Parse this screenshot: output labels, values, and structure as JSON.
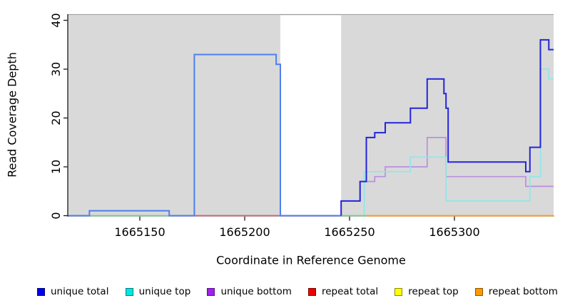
{
  "chart_data": {
    "type": "line",
    "step": true,
    "title": "",
    "xlabel": "Coordinate in Reference Genome",
    "ylabel": "Read Coverage Depth",
    "xlim": [
      1665115.6,
      1665347.3
    ],
    "ylim": [
      0,
      41
    ],
    "x_ticks": [
      1665150,
      1665200,
      1665250,
      1665300
    ],
    "y_ticks": [
      0,
      10,
      20,
      30,
      40
    ],
    "grid": false,
    "panel_color": "#d9d9d9",
    "background_shaded_regions": [
      [
        1665115.6,
        1665217
      ],
      [
        1665246,
        1665347.3
      ]
    ],
    "series": [
      {
        "name": "unique total",
        "color": "#0000EE",
        "line_color": "#2424DC",
        "left_line_color": "#4E7FF0",
        "split_at": 1665246,
        "points": [
          [
            1665116,
            0
          ],
          [
            1665126,
            1
          ],
          [
            1665164,
            0
          ],
          [
            1665176,
            33
          ],
          [
            1665215,
            31
          ],
          [
            1665217,
            0
          ],
          [
            1665246,
            3
          ],
          [
            1665255,
            7
          ],
          [
            1665258,
            16
          ],
          [
            1665262,
            17
          ],
          [
            1665267,
            19
          ],
          [
            1665279,
            22
          ],
          [
            1665287,
            28
          ],
          [
            1665295,
            25
          ],
          [
            1665296,
            22
          ],
          [
            1665297,
            11
          ],
          [
            1665334,
            9
          ],
          [
            1665336,
            14
          ],
          [
            1665341,
            36
          ],
          [
            1665345,
            34
          ]
        ]
      },
      {
        "name": "unique top",
        "color": "#00E6E6",
        "line_color": "#8DE7EB",
        "points": [
          [
            1665116,
            0
          ],
          [
            1665257,
            9
          ],
          [
            1665279,
            12
          ],
          [
            1665296,
            3
          ],
          [
            1665336,
            8
          ],
          [
            1665341,
            30
          ],
          [
            1665345,
            28
          ]
        ]
      },
      {
        "name": "unique bottom",
        "color": "#A020F0",
        "line_color": "#B98FDE",
        "points": [
          [
            1665116,
            0
          ],
          [
            1665246,
            3
          ],
          [
            1665255,
            7
          ],
          [
            1665262,
            8
          ],
          [
            1665267,
            10
          ],
          [
            1665287,
            16
          ],
          [
            1665296,
            8
          ],
          [
            1665334,
            6
          ]
        ]
      },
      {
        "name": "repeat total",
        "color": "#EE0000",
        "line_color": "#DF5B70",
        "points": [
          [
            1665116,
            0
          ]
        ]
      },
      {
        "name": "repeat top",
        "color": "#FFFF00",
        "line_color": "#FFFF00",
        "points": [
          [
            1665116,
            0
          ]
        ]
      },
      {
        "name": "repeat bottom",
        "color": "#FF9900",
        "line_color": "#FF9F28",
        "points": [
          [
            1665116,
            0
          ]
        ]
      }
    ],
    "baseline_overlap_segments": [
      {
        "from": 1665126,
        "to": 1665164,
        "color": "#85C985"
      },
      {
        "from": 1665176,
        "to": 1665217,
        "color": "#DF5B70"
      },
      {
        "from": 1665246,
        "to": 1665258,
        "color": "#85C985"
      },
      {
        "from": 1665258,
        "to": 1665347.3,
        "color": "#FF9F28"
      }
    ],
    "legend_position": "bottom"
  }
}
